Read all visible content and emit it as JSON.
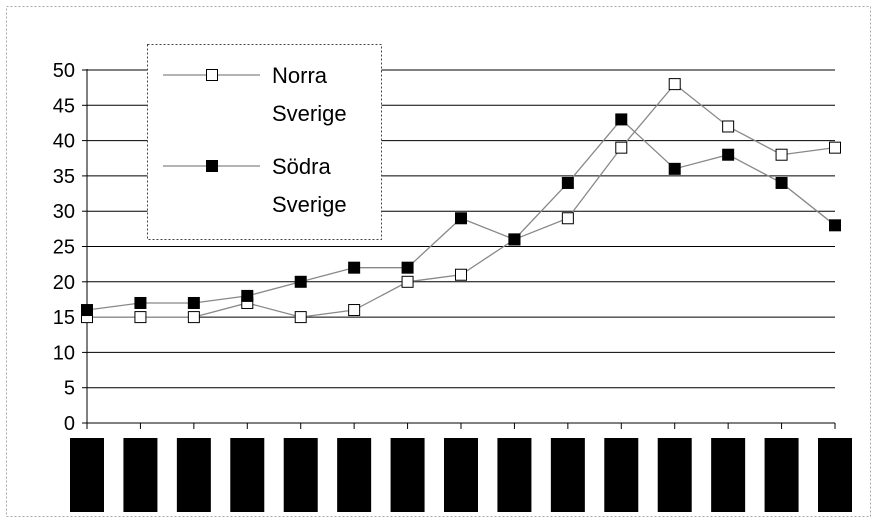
{
  "chart_data": {
    "type": "line",
    "categories": [
      "",
      "",
      "",
      "",
      "",
      "",
      "",
      "",
      "",
      "",
      "",
      "",
      "",
      "",
      ""
    ],
    "series": [
      {
        "name": "Norra Sverige",
        "name_lines": [
          "Norra",
          "Sverige"
        ],
        "marker": "square-open",
        "values": [
          15,
          15,
          15,
          17,
          15,
          16,
          20,
          21,
          26,
          29,
          39,
          48,
          42,
          38,
          39
        ]
      },
      {
        "name": "Södra Sverige",
        "name_lines": [
          "Södra",
          "Sverige"
        ],
        "marker": "square-filled",
        "values": [
          16,
          17,
          17,
          18,
          20,
          22,
          22,
          29,
          26,
          34,
          43,
          36,
          38,
          34,
          28
        ]
      }
    ],
    "ylim": [
      0,
      50
    ],
    "yticks": [
      "0",
      "5",
      "10",
      "15",
      "20",
      "25",
      "30",
      "35",
      "40",
      "45",
      "50"
    ],
    "grid": true,
    "legend_position": "top-left",
    "title": "",
    "xlabel": "",
    "ylabel": "",
    "colors": {
      "line": "#888888",
      "marker_stroke": "#000000",
      "grid": "#000000",
      "redaction_block": "#000000",
      "background": "#ffffff"
    }
  }
}
